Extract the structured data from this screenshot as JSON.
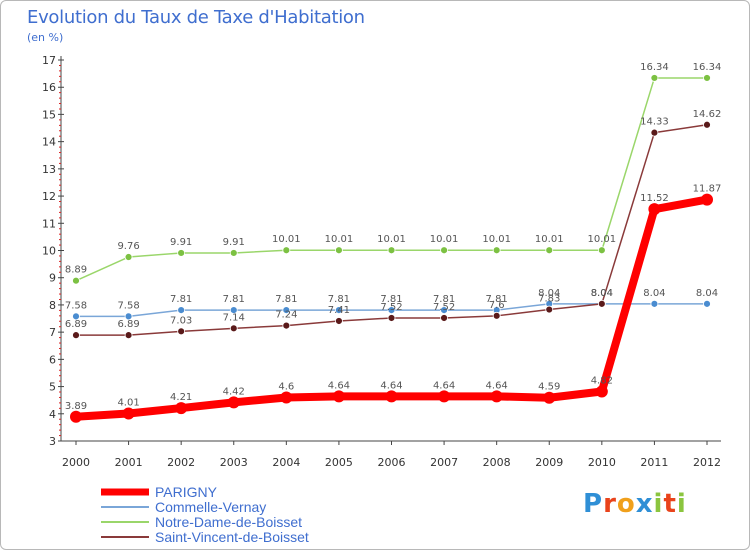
{
  "title": "Evolution du Taux de Taxe d'Habitation",
  "unit_label": "(en %)",
  "logo": {
    "text": "Proxiti",
    "letters": [
      "P",
      "r",
      "o",
      "x",
      "i",
      "t",
      "i"
    ],
    "colors": [
      "#2f8fd6",
      "#e9431b",
      "#f0a01c",
      "#2f8fd6",
      "#8bc53f",
      "#e9431b",
      "#8bc53f"
    ]
  },
  "chart_data": {
    "type": "line",
    "title": "Evolution du Taux de Taxe d'Habitation",
    "ylabel": "(en %)",
    "xlabel": "",
    "ylim": [
      3,
      17
    ],
    "yticks": [
      3,
      4,
      5,
      6,
      7,
      8,
      9,
      10,
      11,
      12,
      13,
      14,
      15,
      16,
      17
    ],
    "grid": false,
    "legend_position": "bottom-left",
    "x": [
      "2000",
      "2001",
      "2002",
      "2003",
      "2004",
      "2005",
      "2006",
      "2007",
      "2008",
      "2009",
      "2010",
      "2011",
      "2012"
    ],
    "series": [
      {
        "name": "PARIGNY",
        "color": "#ff0000",
        "width": 8,
        "values": [
          3.89,
          4.01,
          4.21,
          4.42,
          4.6,
          4.64,
          4.64,
          4.64,
          4.64,
          4.59,
          4.82,
          11.52,
          11.87
        ],
        "labels": [
          "3.89",
          "4.01",
          "4.21",
          "4.42",
          "4.6",
          "4.64",
          "4.64",
          "4.64",
          "4.64",
          "4.59",
          "4.82",
          "11.52",
          "11.87"
        ]
      },
      {
        "name": "Commelle-Vernay",
        "color": "#7aa6d8",
        "width": 1.5,
        "marker": "#4a8cd0",
        "values": [
          7.58,
          7.58,
          7.81,
          7.81,
          7.81,
          7.81,
          7.81,
          7.81,
          7.81,
          8.04,
          8.04,
          8.04,
          8.04
        ],
        "labels": [
          "7.58",
          "7.58",
          "7.81",
          "7.81",
          "7.81",
          "7.81",
          "7.81",
          "7.81",
          "7.81",
          "8.04",
          "8.04",
          "8.04",
          "8.04"
        ]
      },
      {
        "name": "Notre-Dame-de-Boisset",
        "color": "#9ad66a",
        "width": 1.5,
        "marker": "#7cc142",
        "values": [
          8.89,
          9.76,
          9.91,
          9.91,
          10.01,
          10.01,
          10.01,
          10.01,
          10.01,
          10.01,
          10.01,
          16.34,
          16.34
        ],
        "labels": [
          "8.89",
          "9.76",
          "9.91",
          "9.91",
          "10.01",
          "10.01",
          "10.01",
          "10.01",
          "10.01",
          "10.01",
          "10.01",
          "16.34",
          "16.34"
        ]
      },
      {
        "name": "Saint-Vincent-de-Boisset",
        "color": "#8a3a3a",
        "width": 1.5,
        "marker": "#5a1a1a",
        "values": [
          6.89,
          6.89,
          7.03,
          7.14,
          7.24,
          7.41,
          7.52,
          7.52,
          7.6,
          7.83,
          8.04,
          14.33,
          14.62
        ],
        "labels": [
          "6.89",
          "6.89",
          "7.03",
          "7.14",
          "7.24",
          "7.41",
          "7.52",
          "7.52",
          "7.6",
          "7.83",
          "8.04",
          "14.33",
          "14.62"
        ]
      }
    ]
  }
}
